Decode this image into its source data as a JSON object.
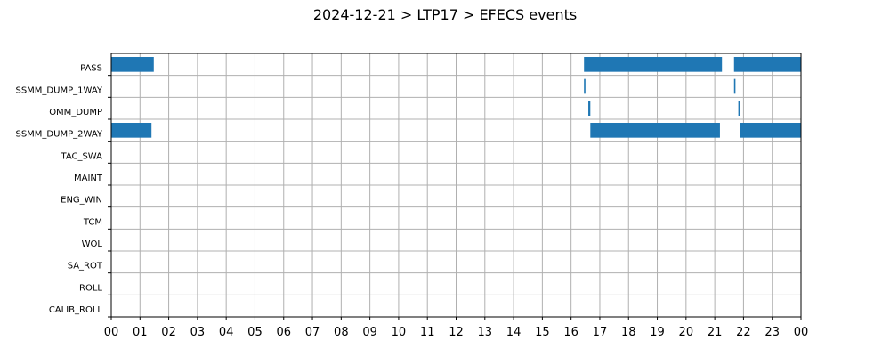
{
  "chart_data": {
    "type": "bar",
    "orientation": "horizontal-timeline",
    "title": "2024-12-21 > LTP17 > EFECS events",
    "xlabel": "",
    "ylabel": "",
    "xlim": [
      0,
      24
    ],
    "x_unit": "hours",
    "x_tick_labels": [
      "00",
      "01",
      "02",
      "03",
      "04",
      "05",
      "06",
      "07",
      "08",
      "09",
      "10",
      "11",
      "12",
      "13",
      "14",
      "15",
      "16",
      "17",
      "18",
      "19",
      "20",
      "21",
      "22",
      "23",
      "00"
    ],
    "categories": [
      "PASS",
      "SSMM_DUMP_1WAY",
      "OMM_DUMP",
      "SSMM_DUMP_2WAY",
      "TAC_SWA",
      "MAINT",
      "ENG_WIN",
      "TCM",
      "WOL",
      "SA_ROT",
      "ROLL",
      "CALIB_ROLL"
    ],
    "grid": true,
    "bar_color": "#1f77b4",
    "events": [
      {
        "category": "PASS",
        "start": 0.0,
        "end": 1.48
      },
      {
        "category": "PASS",
        "start": 16.45,
        "end": 21.25
      },
      {
        "category": "PASS",
        "start": 21.67,
        "end": 24.0
      },
      {
        "category": "SSMM_DUMP_1WAY",
        "start": 16.45,
        "end": 16.5
      },
      {
        "category": "SSMM_DUMP_1WAY",
        "start": 21.67,
        "end": 21.72
      },
      {
        "category": "OMM_DUMP",
        "start": 16.6,
        "end": 16.67
      },
      {
        "category": "OMM_DUMP",
        "start": 21.82,
        "end": 21.87
      },
      {
        "category": "SSMM_DUMP_2WAY",
        "start": 0.0,
        "end": 1.4
      },
      {
        "category": "SSMM_DUMP_2WAY",
        "start": 16.67,
        "end": 21.18
      },
      {
        "category": "SSMM_DUMP_2WAY",
        "start": 21.87,
        "end": 24.0
      }
    ]
  }
}
